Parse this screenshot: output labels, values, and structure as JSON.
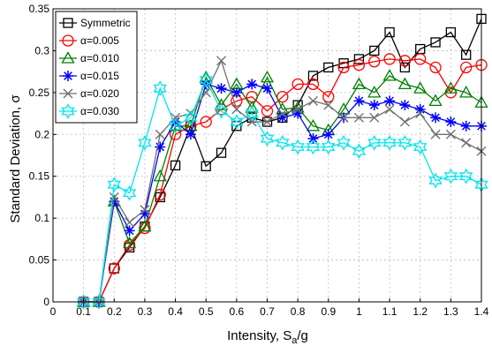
{
  "chart_data": {
    "type": "line",
    "xlabel": "Intensity, S",
    "xlabel_sub": "a",
    "xlabel_suffix": "/g",
    "ylabel": "Standard Deviation, σ",
    "xlim": [
      0,
      1.4
    ],
    "ylim": [
      0,
      0.35
    ],
    "xticks": [
      0,
      0.1,
      0.2,
      0.3,
      0.4,
      0.5,
      0.6,
      0.7,
      0.8,
      0.9,
      1,
      1.1,
      1.2,
      1.3,
      1.4
    ],
    "xtick_labels": [
      "0",
      "0.1",
      "0.2",
      "0.3",
      "0.4",
      "0.5",
      "0.6",
      "0.7",
      "0.8",
      "0.9",
      "1",
      "1.1",
      "1.2",
      "1.3",
      "1.4"
    ],
    "yticks": [
      0,
      0.05,
      0.1,
      0.15,
      0.2,
      0.25,
      0.3,
      0.35
    ],
    "ytick_labels": [
      "0",
      "0.05",
      "0.1",
      "0.15",
      "0.2",
      "0.25",
      "0.3",
      "0.35"
    ],
    "grid": true,
    "legend_position": "top-left",
    "x": [
      0.1,
      0.15,
      0.2,
      0.25,
      0.3,
      0.35,
      0.4,
      0.45,
      0.5,
      0.55,
      0.6,
      0.65,
      0.7,
      0.75,
      0.8,
      0.85,
      0.9,
      0.95,
      1.0,
      1.05,
      1.1,
      1.15,
      1.2,
      1.25,
      1.3,
      1.35,
      1.4
    ],
    "series": [
      {
        "name": "Symmetric",
        "color": "#000000",
        "marker": "square",
        "values": [
          0.0,
          0.0,
          0.04,
          0.065,
          0.09,
          0.125,
          0.163,
          0.21,
          0.162,
          0.178,
          0.21,
          0.22,
          0.215,
          0.22,
          0.235,
          0.27,
          0.28,
          0.285,
          0.29,
          0.3,
          0.322,
          0.28,
          0.302,
          0.31,
          0.322,
          0.295,
          0.338
        ]
      },
      {
        "name": "α=0.005",
        "color": "#ff0000",
        "marker": "circle",
        "values": [
          0.0,
          0.0,
          0.04,
          0.068,
          0.088,
          0.128,
          0.2,
          0.21,
          0.215,
          0.23,
          0.24,
          0.245,
          0.228,
          0.245,
          0.26,
          0.26,
          0.245,
          0.28,
          0.283,
          0.287,
          0.29,
          0.288,
          0.29,
          0.28,
          0.25,
          0.28,
          0.283
        ]
      },
      {
        "name": "α=0.010",
        "color": "#008000",
        "marker": "triangle",
        "values": [
          0.0,
          0.0,
          0.12,
          0.07,
          0.09,
          0.15,
          0.21,
          0.21,
          0.268,
          0.235,
          0.26,
          0.232,
          0.268,
          0.23,
          0.232,
          0.21,
          0.205,
          0.23,
          0.26,
          0.25,
          0.27,
          0.26,
          0.255,
          0.24,
          0.255,
          0.25,
          0.238
        ]
      },
      {
        "name": "α=0.015",
        "color": "#0000ff",
        "marker": "star",
        "values": [
          0.0,
          0.0,
          0.12,
          0.085,
          0.105,
          0.185,
          0.215,
          0.2,
          0.26,
          0.255,
          0.25,
          0.26,
          0.255,
          0.22,
          0.225,
          0.195,
          0.2,
          0.22,
          0.24,
          0.235,
          0.24,
          0.235,
          0.23,
          0.22,
          0.215,
          0.21,
          0.21
        ]
      },
      {
        "name": "α=0.020",
        "color": "#707070",
        "marker": "x",
        "values": [
          0.0,
          0.0,
          0.125,
          0.095,
          0.11,
          0.2,
          0.22,
          0.225,
          0.25,
          0.288,
          0.23,
          0.215,
          0.215,
          0.225,
          0.23,
          0.24,
          0.235,
          0.22,
          0.22,
          0.22,
          0.23,
          0.215,
          0.225,
          0.2,
          0.2,
          0.19,
          0.18
        ]
      },
      {
        "name": "α=0.030",
        "color": "#00e5ee",
        "marker": "hexagram",
        "values": [
          0.0,
          0.0,
          0.14,
          0.13,
          0.19,
          0.255,
          0.21,
          0.22,
          0.265,
          0.228,
          0.215,
          0.225,
          0.195,
          0.19,
          0.185,
          0.185,
          0.185,
          0.19,
          0.18,
          0.19,
          0.19,
          0.19,
          0.185,
          0.145,
          0.15,
          0.15,
          0.14
        ]
      }
    ]
  }
}
